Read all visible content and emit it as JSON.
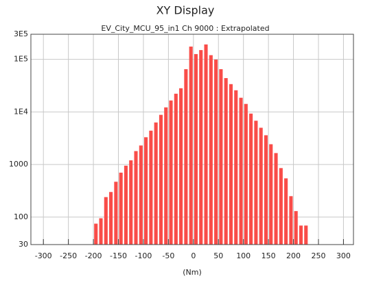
{
  "chart_data": {
    "type": "histogram",
    "title": "XY Display",
    "subtitle": "EV_City_MCU_95_in1  Ch 9000 : Extrapolated",
    "x_label": "(Nm)",
    "color": "#f94c48",
    "log_y": true,
    "grid": true,
    "bins": [
      -200,
      -190,
      -180,
      -170,
      -160,
      -150,
      -140,
      -130,
      -120,
      -110,
      -100,
      -90,
      -80,
      -70,
      -60,
      -50,
      -40,
      -30,
      -20,
      -10,
      0,
      10,
      20,
      30,
      40,
      50,
      60,
      70,
      80,
      90,
      100,
      110,
      120,
      130,
      140,
      150,
      160,
      170,
      180,
      190,
      200,
      210,
      220,
      230
    ],
    "values": [
      75,
      95,
      240,
      300,
      470,
      700,
      950,
      1200,
      1800,
      2300,
      3300,
      4400,
      6300,
      8800,
      12200,
      16500,
      22200,
      28200,
      65000,
      175000,
      126000,
      150000,
      192000,
      120000,
      99000,
      65000,
      44000,
      33800,
      25800,
      18600,
      14200,
      9300,
      6800,
      5000,
      3600,
      2430,
      1650,
      855,
      545,
      250,
      130,
      69,
      69
    ],
    "xlim": [
      -325,
      320
    ],
    "xticks": [
      -300,
      -250,
      -200,
      -150,
      -100,
      -50,
      0,
      50,
      100,
      150,
      200,
      250,
      300
    ],
    "ylim": [
      30,
      300000
    ],
    "yticks": [
      30,
      100,
      1000,
      {
        "value": 10000,
        "label": "1E4"
      },
      {
        "value": 100000,
        "label": "1E5"
      },
      {
        "value": 300000,
        "label": "3E5"
      }
    ]
  }
}
